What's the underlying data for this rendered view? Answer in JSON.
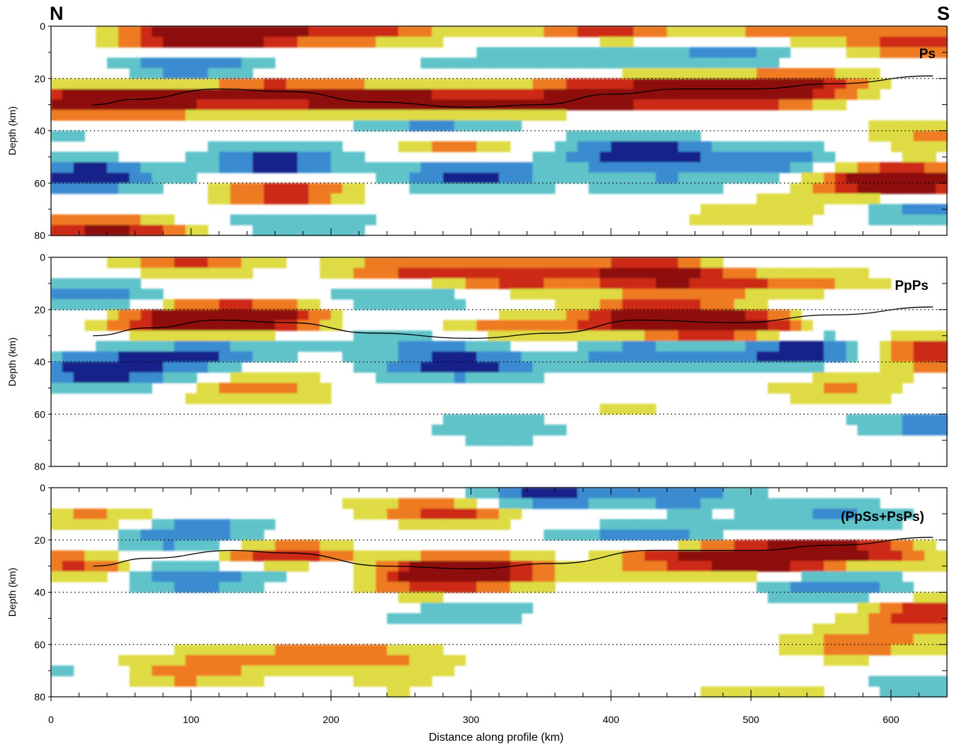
{
  "figure": {
    "north_label": "N",
    "south_label": "S",
    "xlabel": "Distance along profile (km)",
    "xticks": [
      0,
      100,
      200,
      300,
      400,
      500,
      600
    ],
    "xlim": [
      0,
      640
    ]
  },
  "colors": {
    "dark_red": "#8e0b08",
    "red": "#cc2a12",
    "orange": "#ee7a22",
    "yellow": "#dedb45",
    "cyan": "#5ec3c9",
    "blue": "#3a8bd1",
    "dark_blue": "#13248a",
    "moho_line": "#000000",
    "grid": "#000000"
  },
  "chart_data": [
    {
      "type": "heatmap",
      "panel": "Ps",
      "title": "Ps",
      "ylabel": "Depth (km)",
      "yticks": [
        0,
        20,
        40,
        60,
        80
      ],
      "ylim": [
        0,
        80
      ],
      "xlim": [
        0,
        640
      ],
      "grid_depths": [
        20,
        40,
        60
      ],
      "moho": {
        "x": [
          30,
          60,
          120,
          170,
          230,
          300,
          350,
          400,
          450,
          500,
          560,
          630
        ],
        "depth": [
          30,
          28,
          24,
          25,
          29,
          31,
          30,
          26,
          24,
          24,
          22,
          19
        ]
      },
      "anomalies": [
        {
          "x": 100,
          "depth": 4,
          "sign": 1,
          "amp": 1.0
        },
        {
          "x": 150,
          "depth": 2,
          "sign": 1,
          "amp": 0.7
        },
        {
          "x": 230,
          "depth": 1,
          "sign": 1,
          "amp": 0.6
        },
        {
          "x": 400,
          "depth": 1,
          "sign": 1,
          "amp": 0.6
        },
        {
          "x": 520,
          "depth": 1,
          "sign": 1,
          "amp": 0.5
        },
        {
          "x": 20,
          "depth": 29,
          "sign": 1,
          "amp": 0.9
        },
        {
          "x": 85,
          "depth": 28,
          "sign": 1,
          "amp": 0.7
        },
        {
          "x": 160,
          "depth": 25,
          "sign": 1,
          "amp": 0.8
        },
        {
          "x": 230,
          "depth": 29,
          "sign": 1,
          "amp": 0.9
        },
        {
          "x": 300,
          "depth": 31,
          "sign": 1,
          "amp": 1.0
        },
        {
          "x": 390,
          "depth": 27,
          "sign": 1,
          "amp": 1.0
        },
        {
          "x": 470,
          "depth": 24,
          "sign": 1,
          "amp": 1.0
        },
        {
          "x": 540,
          "depth": 23,
          "sign": 1,
          "amp": 0.8
        },
        {
          "x": 290,
          "depth": 45,
          "sign": 1,
          "amp": 0.8
        },
        {
          "x": 165,
          "depth": 65,
          "sign": 1,
          "amp": 0.9
        },
        {
          "x": 40,
          "depth": 77,
          "sign": 1,
          "amp": 0.6
        },
        {
          "x": 580,
          "depth": 58,
          "sign": 1,
          "amp": 0.7
        },
        {
          "x": 625,
          "depth": 60,
          "sign": 1,
          "amp": 0.8
        },
        {
          "x": 625,
          "depth": 5,
          "sign": 1,
          "amp": 0.6
        },
        {
          "x": 625,
          "depth": 40,
          "sign": 1,
          "amp": 0.6
        },
        {
          "x": 25,
          "depth": 57,
          "sign": -1,
          "amp": 1.0
        },
        {
          "x": 100,
          "depth": 15,
          "sign": -1,
          "amp": 0.8
        },
        {
          "x": 160,
          "depth": 52,
          "sign": -1,
          "amp": 0.9
        },
        {
          "x": 300,
          "depth": 57,
          "sign": -1,
          "amp": 1.0
        },
        {
          "x": 420,
          "depth": 48,
          "sign": -1,
          "amp": 0.9
        },
        {
          "x": 480,
          "depth": 12,
          "sign": -1,
          "amp": 0.7
        },
        {
          "x": 290,
          "depth": 38,
          "sign": -1,
          "amp": 0.7
        },
        {
          "x": 520,
          "depth": 52,
          "sign": -1,
          "amp": 0.7
        },
        {
          "x": 180,
          "depth": 75,
          "sign": -1,
          "amp": 0.6
        },
        {
          "x": 625,
          "depth": 70,
          "sign": -1,
          "amp": 0.7
        },
        {
          "x": 360,
          "depth": 10,
          "sign": -1,
          "amp": 0.5
        }
      ]
    },
    {
      "type": "heatmap",
      "panel": "PpPs",
      "title": "PpPs",
      "ylabel": "Depth (km)",
      "yticks": [
        0,
        20,
        40,
        60,
        80
      ],
      "ylim": [
        0,
        80
      ],
      "xlim": [
        0,
        640
      ],
      "grid_depths": [
        20,
        40,
        60
      ],
      "moho": {
        "x": [
          30,
          70,
          120,
          170,
          230,
          300,
          360,
          420,
          490,
          560,
          630
        ],
        "depth": [
          30,
          27,
          24,
          25,
          29,
          31,
          29,
          24,
          25,
          22,
          19
        ]
      },
      "anomalies": [
        {
          "x": 90,
          "depth": 24,
          "sign": 1,
          "amp": 0.9
        },
        {
          "x": 150,
          "depth": 23,
          "sign": 1,
          "amp": 0.9
        },
        {
          "x": 430,
          "depth": 24,
          "sign": 1,
          "amp": 1.0
        },
        {
          "x": 490,
          "depth": 27,
          "sign": 1,
          "amp": 0.9
        },
        {
          "x": 330,
          "depth": 29,
          "sign": 1,
          "amp": 0.6
        },
        {
          "x": 430,
          "depth": 5,
          "sign": 1,
          "amp": 1.0
        },
        {
          "x": 330,
          "depth": 7,
          "sign": 1,
          "amp": 0.8
        },
        {
          "x": 250,
          "depth": 5,
          "sign": 1,
          "amp": 0.6
        },
        {
          "x": 100,
          "depth": 1,
          "sign": 1,
          "amp": 0.6
        },
        {
          "x": 625,
          "depth": 35,
          "sign": 1,
          "amp": 0.6
        },
        {
          "x": 560,
          "depth": 52,
          "sign": 1,
          "amp": 0.4
        },
        {
          "x": 150,
          "depth": 48,
          "sign": 1,
          "amp": 0.4
        },
        {
          "x": 30,
          "depth": 43,
          "sign": -1,
          "amp": 0.8
        },
        {
          "x": 110,
          "depth": 37,
          "sign": -1,
          "amp": 0.7
        },
        {
          "x": 300,
          "depth": 40,
          "sign": -1,
          "amp": 0.8
        },
        {
          "x": 420,
          "depth": 37,
          "sign": -1,
          "amp": 0.8
        },
        {
          "x": 540,
          "depth": 36,
          "sign": -1,
          "amp": 0.9
        },
        {
          "x": 250,
          "depth": 15,
          "sign": -1,
          "amp": 0.6
        },
        {
          "x": 30,
          "depth": 15,
          "sign": -1,
          "amp": 0.6
        },
        {
          "x": 625,
          "depth": 65,
          "sign": -1,
          "amp": 0.6
        },
        {
          "x": 320,
          "depth": 65,
          "sign": -1,
          "amp": 0.4
        }
      ]
    },
    {
      "type": "heatmap",
      "panel": "(PpSs+PsPs)",
      "title": "(PpSs+PsPs)",
      "ylabel": "Depth (km)",
      "yticks": [
        0,
        20,
        40,
        60,
        80
      ],
      "ylim": [
        0,
        80
      ],
      "xlim": [
        0,
        640
      ],
      "grid_depths": [
        20,
        40,
        60
      ],
      "moho": {
        "x": [
          30,
          70,
          130,
          170,
          240,
          300,
          360,
          430,
          500,
          560,
          630
        ],
        "depth": [
          30,
          27,
          24,
          25,
          30,
          31,
          29,
          24,
          24,
          22,
          19
        ]
      },
      "anomalies": [
        {
          "x": 25,
          "depth": 30,
          "sign": 1,
          "amp": 0.8
        },
        {
          "x": 150,
          "depth": 26,
          "sign": 1,
          "amp": 0.8
        },
        {
          "x": 300,
          "depth": 31,
          "sign": 1,
          "amp": 0.9
        },
        {
          "x": 440,
          "depth": 25,
          "sign": 1,
          "amp": 0.8
        },
        {
          "x": 510,
          "depth": 27,
          "sign": 1,
          "amp": 1.0
        },
        {
          "x": 570,
          "depth": 24,
          "sign": 1,
          "amp": 0.8
        },
        {
          "x": 290,
          "depth": 10,
          "sign": 1,
          "amp": 0.8
        },
        {
          "x": 40,
          "depth": 11,
          "sign": 1,
          "amp": 0.6
        },
        {
          "x": 625,
          "depth": 48,
          "sign": 1,
          "amp": 0.7
        },
        {
          "x": 270,
          "depth": 35,
          "sign": 1,
          "amp": 0.6
        },
        {
          "x": 570,
          "depth": 60,
          "sign": 1,
          "amp": 0.4
        },
        {
          "x": 90,
          "depth": 72,
          "sign": 1,
          "amp": 0.4
        },
        {
          "x": 100,
          "depth": 17,
          "sign": -1,
          "amp": 0.8
        },
        {
          "x": 430,
          "depth": 18,
          "sign": -1,
          "amp": 1.0
        },
        {
          "x": 350,
          "depth": 3,
          "sign": -1,
          "amp": 0.9
        },
        {
          "x": 450,
          "depth": 3,
          "sign": -1,
          "amp": 0.8
        },
        {
          "x": 110,
          "depth": 34,
          "sign": -1,
          "amp": 0.5
        },
        {
          "x": 560,
          "depth": 37,
          "sign": -1,
          "amp": 0.7
        },
        {
          "x": 560,
          "depth": 12,
          "sign": -1,
          "amp": 0.6
        },
        {
          "x": 300,
          "depth": 45,
          "sign": -1,
          "amp": 0.4
        },
        {
          "x": 625,
          "depth": 78,
          "sign": -1,
          "amp": 0.5
        }
      ]
    }
  ]
}
